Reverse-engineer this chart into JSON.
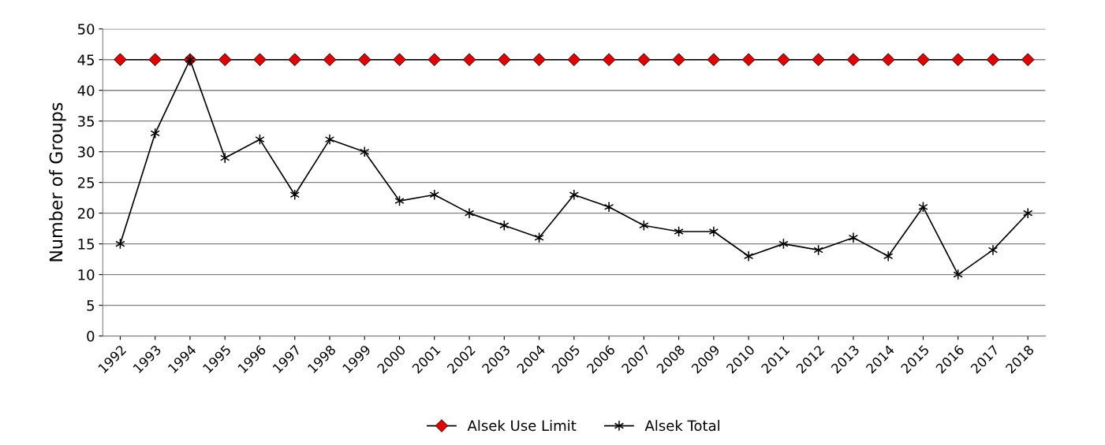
{
  "chart_data": {
    "type": "line",
    "ylabel": "Number of Groups",
    "categories": [
      "1992",
      "1993",
      "1994",
      "1995",
      "1996",
      "1997",
      "1998",
      "1999",
      "2000",
      "2001",
      "2002",
      "2003",
      "2004",
      "2005",
      "2006",
      "2007",
      "2008",
      "2009",
      "2010",
      "2011",
      "2012",
      "2013",
      "2014",
      "2015",
      "2016",
      "2017",
      "2018"
    ],
    "series": [
      {
        "name": "Alsek Use Limit",
        "color": "#e00000",
        "marker": "diamond",
        "values": [
          45,
          45,
          45,
          45,
          45,
          45,
          45,
          45,
          45,
          45,
          45,
          45,
          45,
          45,
          45,
          45,
          45,
          45,
          45,
          45,
          45,
          45,
          45,
          45,
          45,
          45,
          45
        ]
      },
      {
        "name": "Alsek Total",
        "color": "#000000",
        "marker": "cross",
        "values": [
          15,
          33,
          45,
          29,
          32,
          23,
          32,
          30,
          22,
          23,
          20,
          18,
          16,
          23,
          21,
          18,
          17,
          17,
          13,
          15,
          14,
          16,
          13,
          21,
          10,
          14,
          20
        ]
      }
    ],
    "ylim": [
      0,
      50
    ],
    "yticks": [
      0,
      5,
      10,
      15,
      20,
      25,
      30,
      35,
      40,
      45,
      50
    ],
    "grid": "y",
    "legend": "bottom",
    "line_style": "solid"
  }
}
